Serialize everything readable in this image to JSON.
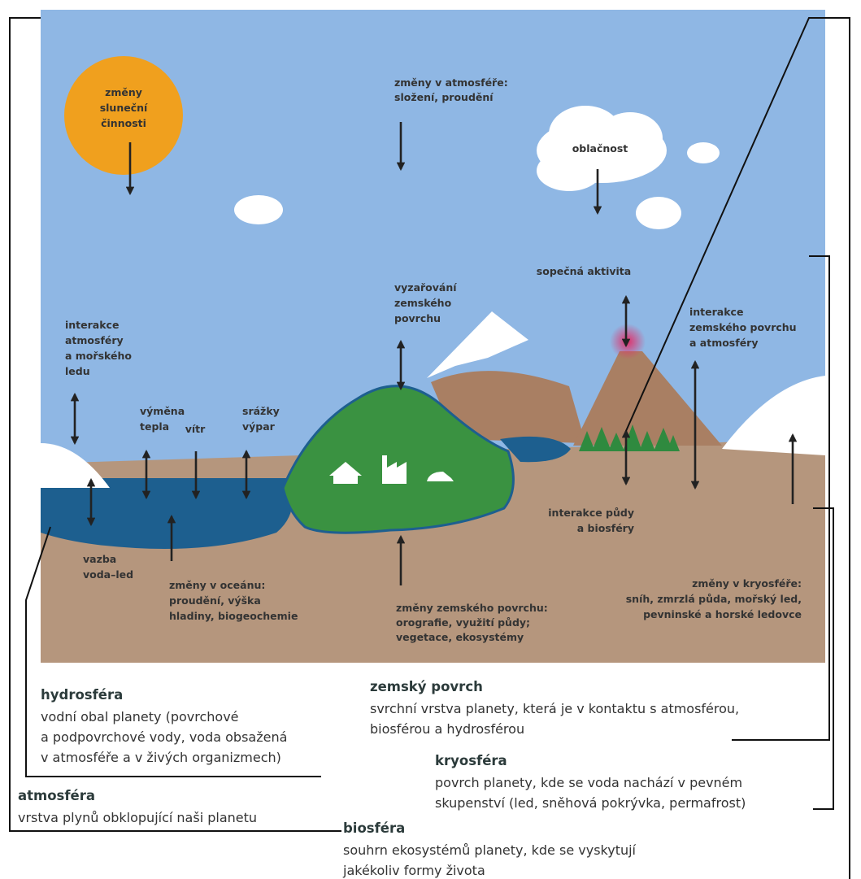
{
  "diagram": {
    "labels": {
      "sun": [
        "změny",
        "sluneční",
        "činnosti"
      ],
      "atmosphere_changes": [
        "změny v atmosféře:",
        "složení, proudění"
      ],
      "clouds": [
        "oblačnost"
      ],
      "volcanic": [
        "sopečná aktivita"
      ],
      "radiation": [
        "vyzařování",
        "zemského",
        "povrchu"
      ],
      "atm_ice": [
        "interakce",
        "atmosféry",
        "a mořského",
        "ledu"
      ],
      "land_atm": [
        "interakce",
        "zemského povrchu",
        "a atmosféry"
      ],
      "heat": [
        "výměna",
        "tepla"
      ],
      "wind": [
        "vítr"
      ],
      "precip": [
        "srážky",
        "výpar"
      ],
      "soil_bio": [
        "interakce půdy",
        "a biosféry"
      ],
      "water_ice": [
        "vazba",
        "voda–led"
      ],
      "ocean": [
        "změny v oceánu:",
        "proudění, výška",
        "hladiny, biogeochemie"
      ],
      "land": [
        "změny zemského povrchu:",
        "orografie, využití půdy;",
        "vegetace, ekosystémy"
      ],
      "cryo": [
        "změny v kryosféře:",
        "sníh, zmrzlá půda, mořský led,",
        "pevninské a horské ledovce"
      ]
    }
  },
  "legend": [
    {
      "title": "hydrosféra",
      "lines": [
        "vodní obal planety (povrchové",
        "a podpovrchové vody, voda obsažená",
        "v atmosféře a v živých organizmech)"
      ]
    },
    {
      "title": "zemský povrch",
      "lines": [
        "svrchní vrstva planety, která je v kontaktu s atmosférou,",
        "biosférou a hydrosférou"
      ]
    },
    {
      "title": "kryosféra",
      "lines": [
        "povrch planety, kde se voda nachází v pevném",
        "skupenství (led, sněhová pokrývka, permafrost)"
      ]
    },
    {
      "title": "atmosféra",
      "lines": [
        "vrstva plynů obklopující naši planetu"
      ]
    },
    {
      "title": "biosféra",
      "lines": [
        "souhrn ekosystémů planety, kde se vyskytují",
        "jakékoliv formy života"
      ]
    }
  ]
}
